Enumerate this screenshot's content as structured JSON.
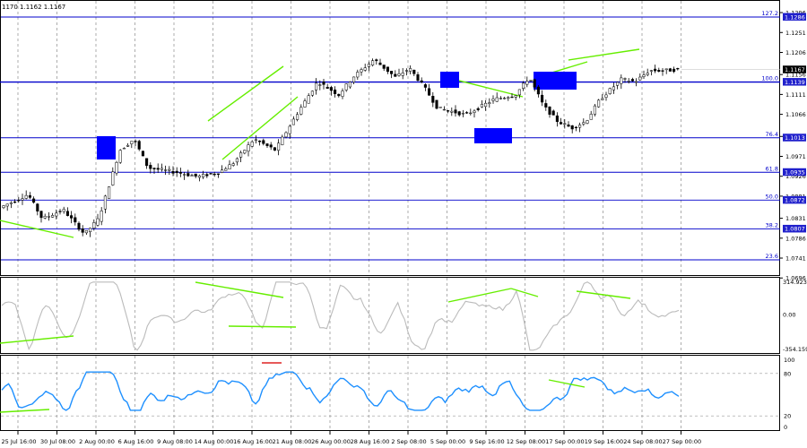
{
  "symbol_header": "1170 1.1162 1.1167",
  "price_pane": {
    "ylim": [
      1.0696,
      1.1321
    ],
    "tick_labels": [
      "1.1296",
      "1.1251",
      "1.1206",
      "1.1156",
      "1.1111",
      "1.1066",
      "1.1016",
      "1.0971",
      "1.0926",
      "1.0881",
      "1.0831",
      "1.0786",
      "1.0741",
      "1.0696"
    ],
    "current_price": "1.1167",
    "current_price_value": 1.1167,
    "horizontal_level": {
      "label": "1.1139",
      "value": 1.1139
    },
    "fib_levels": [
      {
        "label": "127.2",
        "price_label": "1.1286",
        "value": 1.1286
      },
      {
        "label": "100.0",
        "price_label": "1.1139",
        "value": 1.1139
      },
      {
        "label": "76.4",
        "price_label": "1.1013",
        "value": 1.1013
      },
      {
        "label": "61.8",
        "price_label": "1.0935",
        "value": 1.0935
      },
      {
        "label": "50.0",
        "price_label": "1.0872",
        "value": 1.0872
      },
      {
        "label": "38.2",
        "price_label": "1.0807",
        "value": 1.0807
      },
      {
        "label": "23.6",
        "price_label": "",
        "value": 1.0737
      }
    ],
    "colors": {
      "fib": "#0000cc",
      "candle": "#000000",
      "highlight": "#0000ff",
      "trendline": "#66ee00"
    }
  },
  "osc_pane": {
    "ylim": [
      -354.1591,
      314.9232
    ],
    "tick_labels": [
      "314.9232",
      "0.00",
      "-354.159"
    ],
    "color": "#bbbbbb"
  },
  "rsi_pane": {
    "ylim": [
      0,
      100
    ],
    "tick_labels": [
      "100",
      "80",
      "20",
      "0"
    ],
    "levels": [
      80,
      20
    ],
    "color": "#1e90ff"
  },
  "time_axis": [
    "25 Jul 16:00",
    "30 Jul 08:00",
    "2 Aug 00:00",
    "6 Aug 16:00",
    "9 Aug 08:00",
    "14 Aug 00:00",
    "16 Aug 16:00",
    "21 Aug 08:00",
    "26 Aug 00:00",
    "28 Aug 16:00",
    "2 Sep 08:00",
    "5 Sep 00:00",
    "9 Sep 16:00",
    "12 Sep 08:00",
    "17 Sep 00:00",
    "19 Sep 16:00",
    "24 Sep 08:00",
    "27 Sep 00:00"
  ],
  "chart_data": {
    "type": "line",
    "x_index_range": [
      0,
      96
    ],
    "close_points": [
      [
        0,
        1.0855
      ],
      [
        4,
        1.0885
      ],
      [
        6,
        1.083
      ],
      [
        9,
        1.085
      ],
      [
        12,
        1.0795
      ],
      [
        14,
        1.083
      ],
      [
        17,
        1.0985
      ],
      [
        19,
        1.101
      ],
      [
        21,
        1.0945
      ],
      [
        25,
        1.0935
      ],
      [
        28,
        1.0925
      ],
      [
        31,
        1.0935
      ],
      [
        33,
        1.0955
      ],
      [
        36,
        1.101
      ],
      [
        39,
        1.0985
      ],
      [
        42,
        1.1065
      ],
      [
        45,
        1.114
      ],
      [
        48,
        1.111
      ],
      [
        50,
        1.115
      ],
      [
        53,
        1.119
      ],
      [
        56,
        1.115
      ],
      [
        58,
        1.117
      ],
      [
        60,
        1.113
      ],
      [
        62,
        1.108
      ],
      [
        66,
        1.1065
      ],
      [
        70,
        1.11
      ],
      [
        73,
        1.111
      ],
      [
        75,
        1.115
      ],
      [
        77,
        1.1085
      ],
      [
        79,
        1.105
      ],
      [
        81,
        1.1035
      ],
      [
        83,
        1.105
      ],
      [
        85,
        1.11
      ],
      [
        88,
        1.1145
      ],
      [
        90,
        1.114
      ],
      [
        92,
        1.1165
      ],
      [
        94,
        1.1165
      ],
      [
        96,
        1.1167
      ]
    ]
  }
}
